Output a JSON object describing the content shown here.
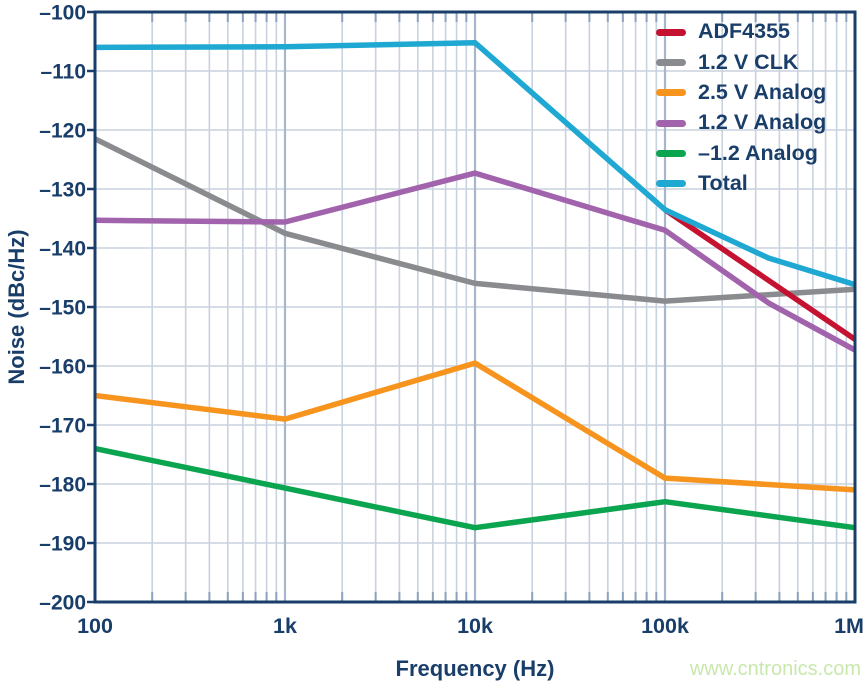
{
  "page": {
    "watermark": "www.cntronics.com"
  },
  "style": {
    "navy": "#1a3e6a",
    "grid_minor": "#c9d2df",
    "grid_major": "#a7b6cc",
    "tick_inner": "#8da2bd",
    "watermark_color": "#c8e8ad",
    "background": "#ffffff"
  },
  "chart_data": {
    "type": "line",
    "title": "",
    "xlabel": "Frequency (Hz)",
    "ylabel": "Noise (dBc/Hz)",
    "x_scale": "log",
    "xlim": [
      100,
      1000000
    ],
    "ylim": [
      -200,
      -100
    ],
    "grid": true,
    "legend_position": "top-right",
    "x_tick_values": [
      100,
      1000,
      10000,
      100000,
      1000000
    ],
    "x_tick_labels": [
      "100",
      "1k",
      "10k",
      "100k",
      "1M"
    ],
    "y_tick_values": [
      -100,
      -110,
      -120,
      -130,
      -140,
      -150,
      -160,
      -170,
      -180,
      -190,
      -200
    ],
    "y_tick_labels": [
      "–100",
      "–110",
      "–120",
      "–130",
      "–140",
      "–150",
      "–160",
      "–170",
      "–180",
      "–190",
      "–200"
    ],
    "series": [
      {
        "name": "ADF4355",
        "color": "#c41230",
        "points": [
          [
            100000,
            -133.5
          ],
          [
            1000000,
            -155.5
          ]
        ]
      },
      {
        "name": "1.2 V CLK",
        "color": "#8a8b8e",
        "points": [
          [
            100,
            -121.5
          ],
          [
            1000,
            -137.5
          ],
          [
            10000,
            -146
          ],
          [
            100000,
            -149
          ],
          [
            1000000,
            -147
          ]
        ]
      },
      {
        "name": "2.5 V Analog",
        "color": "#f6941e",
        "points": [
          [
            100,
            -165
          ],
          [
            1000,
            -169
          ],
          [
            10000,
            -159.5
          ],
          [
            100000,
            -179
          ],
          [
            1000000,
            -181
          ]
        ]
      },
      {
        "name": "1.2 V Analog",
        "color": "#a263ad",
        "points": [
          [
            100,
            -135.3
          ],
          [
            1000,
            -135.6
          ],
          [
            10000,
            -127.3
          ],
          [
            100000,
            -137
          ],
          [
            350000,
            -149.3
          ],
          [
            1000000,
            -157.3
          ]
        ]
      },
      {
        "name": "–1.2 Analog",
        "color": "#0ba44f",
        "points": [
          [
            100,
            -174
          ],
          [
            1000,
            -180.7
          ],
          [
            10000,
            -187.4
          ],
          [
            100000,
            -183
          ],
          [
            1000000,
            -187.4
          ]
        ]
      },
      {
        "name": "Total",
        "color": "#1fa8d2",
        "points": [
          [
            100,
            -106
          ],
          [
            1000,
            -105.9
          ],
          [
            10000,
            -105.2
          ],
          [
            100000,
            -133.5
          ],
          [
            350000,
            -141.7
          ],
          [
            1000000,
            -146.2
          ]
        ]
      }
    ],
    "draw_order": [
      1,
      2,
      4,
      0,
      3,
      5
    ]
  }
}
